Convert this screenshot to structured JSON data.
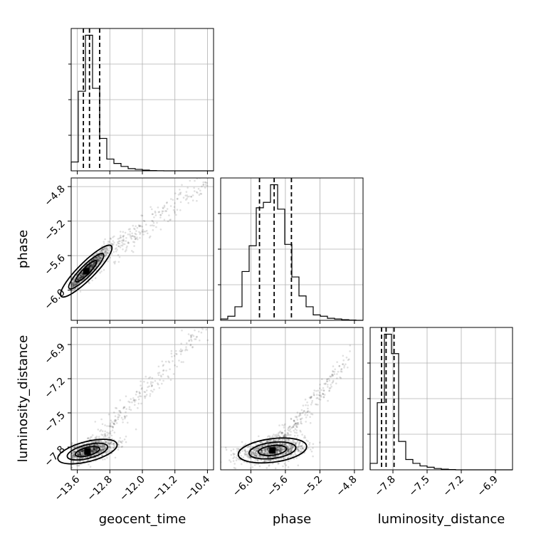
{
  "chart_data": {
    "type": "corner",
    "parameters": [
      "geocent_time",
      "phase",
      "luminosity_distance"
    ],
    "axis_labels": {
      "geocent_time": "geocent_time",
      "phase": "phase",
      "luminosity_distance": "luminosity_distance"
    },
    "ranges": {
      "geocent_time": [
        -13.75,
        -10.25
      ],
      "phase": [
        -6.35,
        -4.7
      ],
      "luminosity_distance": [
        -8.0,
        -6.75
      ]
    },
    "ticks": {
      "geocent_time": [
        "−13.6",
        "−12.8",
        "−12.0",
        "−11.2",
        "−10.4"
      ],
      "phase": [
        "−6.0",
        "−5.6",
        "−5.2",
        "−4.8"
      ],
      "luminosity_distance": [
        "−7.8",
        "−7.5",
        "−7.2",
        "−6.9"
      ]
    },
    "tick_values": {
      "geocent_time": [
        -13.6,
        -12.8,
        -12.0,
        -11.2,
        -10.4
      ],
      "phase": [
        -6.0,
        -5.6,
        -5.2,
        -4.8
      ],
      "luminosity_distance": [
        -7.8,
        -7.5,
        -7.2,
        -6.9
      ]
    },
    "histograms": {
      "geocent_time": {
        "edges": [
          -13.75,
          -13.575,
          -13.4,
          -13.225,
          -13.05,
          -12.875,
          -12.7,
          -12.525,
          -12.35,
          -12.175,
          -12.0,
          -11.825,
          -11.65,
          -11.475,
          -11.3,
          -11.125,
          -10.95,
          -10.775,
          -10.6,
          -10.425,
          -10.25
        ],
        "counts": [
          6,
          54,
          92,
          56,
          22,
          8,
          5,
          3,
          1.5,
          1,
          0.5,
          0.2,
          0.1,
          0,
          0,
          0,
          0,
          0,
          0,
          0
        ],
        "quantiles": [
          -13.45,
          -13.3,
          -13.05
        ]
      },
      "phase": {
        "edges": [
          -6.35,
          -6.2675,
          -6.185,
          -6.1025,
          -6.02,
          -5.9375,
          -5.855,
          -5.7725,
          -5.69,
          -5.6075,
          -5.525,
          -5.4425,
          -5.36,
          -5.2775,
          -5.195,
          -5.1125,
          -5.03,
          -4.9475,
          -4.865,
          -4.7825,
          -4.7
        ],
        "counts": [
          1,
          3,
          10,
          36,
          55,
          83,
          87,
          100,
          82,
          56,
          32,
          18,
          10,
          4,
          3,
          1.5,
          1,
          0.5,
          0.2,
          0
        ],
        "quantiles": [
          -5.9,
          -5.73,
          -5.53
        ]
      },
      "luminosity_distance": {
        "edges": [
          -8.0,
          -7.9375,
          -7.875,
          -7.8125,
          -7.75,
          -7.6875,
          -7.625,
          -7.5625,
          -7.5,
          -7.4375,
          -7.375,
          -7.3125,
          -7.25,
          -7.1875,
          -7.125,
          -7.0625,
          -7.0,
          -6.9375,
          -6.875,
          -6.8125,
          -6.75
        ],
        "counts": [
          5,
          52,
          105,
          90,
          22,
          8,
          5,
          3,
          2,
          1,
          0.5,
          0.2,
          0,
          0,
          0,
          0,
          0,
          0,
          0,
          0
        ],
        "quantiles": [
          -7.9,
          -7.86,
          -7.79
        ]
      }
    },
    "pairs": [
      {
        "x": "geocent_time",
        "y": "phase",
        "center": [
          -13.38,
          -5.78
        ],
        "sigma": [
          0.28,
          0.14
        ],
        "correlation": 0.95,
        "tail": {
          "slope": 0.36,
          "length": 3.0,
          "spread": 0.08
        }
      },
      {
        "x": "geocent_time",
        "y": "luminosity_distance",
        "center": [
          -13.35,
          -7.84
        ],
        "sigma": [
          0.33,
          0.05
        ],
        "correlation": 0.6,
        "tail": {
          "slope": 0.38,
          "length": 3.0,
          "spread": 0.06
        }
      },
      {
        "x": "phase",
        "y": "luminosity_distance",
        "center": [
          -5.75,
          -7.83
        ],
        "sigma": [
          0.18,
          0.05
        ],
        "correlation": 0.35,
        "tail": {
          "slope": 0.9,
          "length": 0.9,
          "spread": 0.05
        }
      }
    ],
    "grid": true
  }
}
